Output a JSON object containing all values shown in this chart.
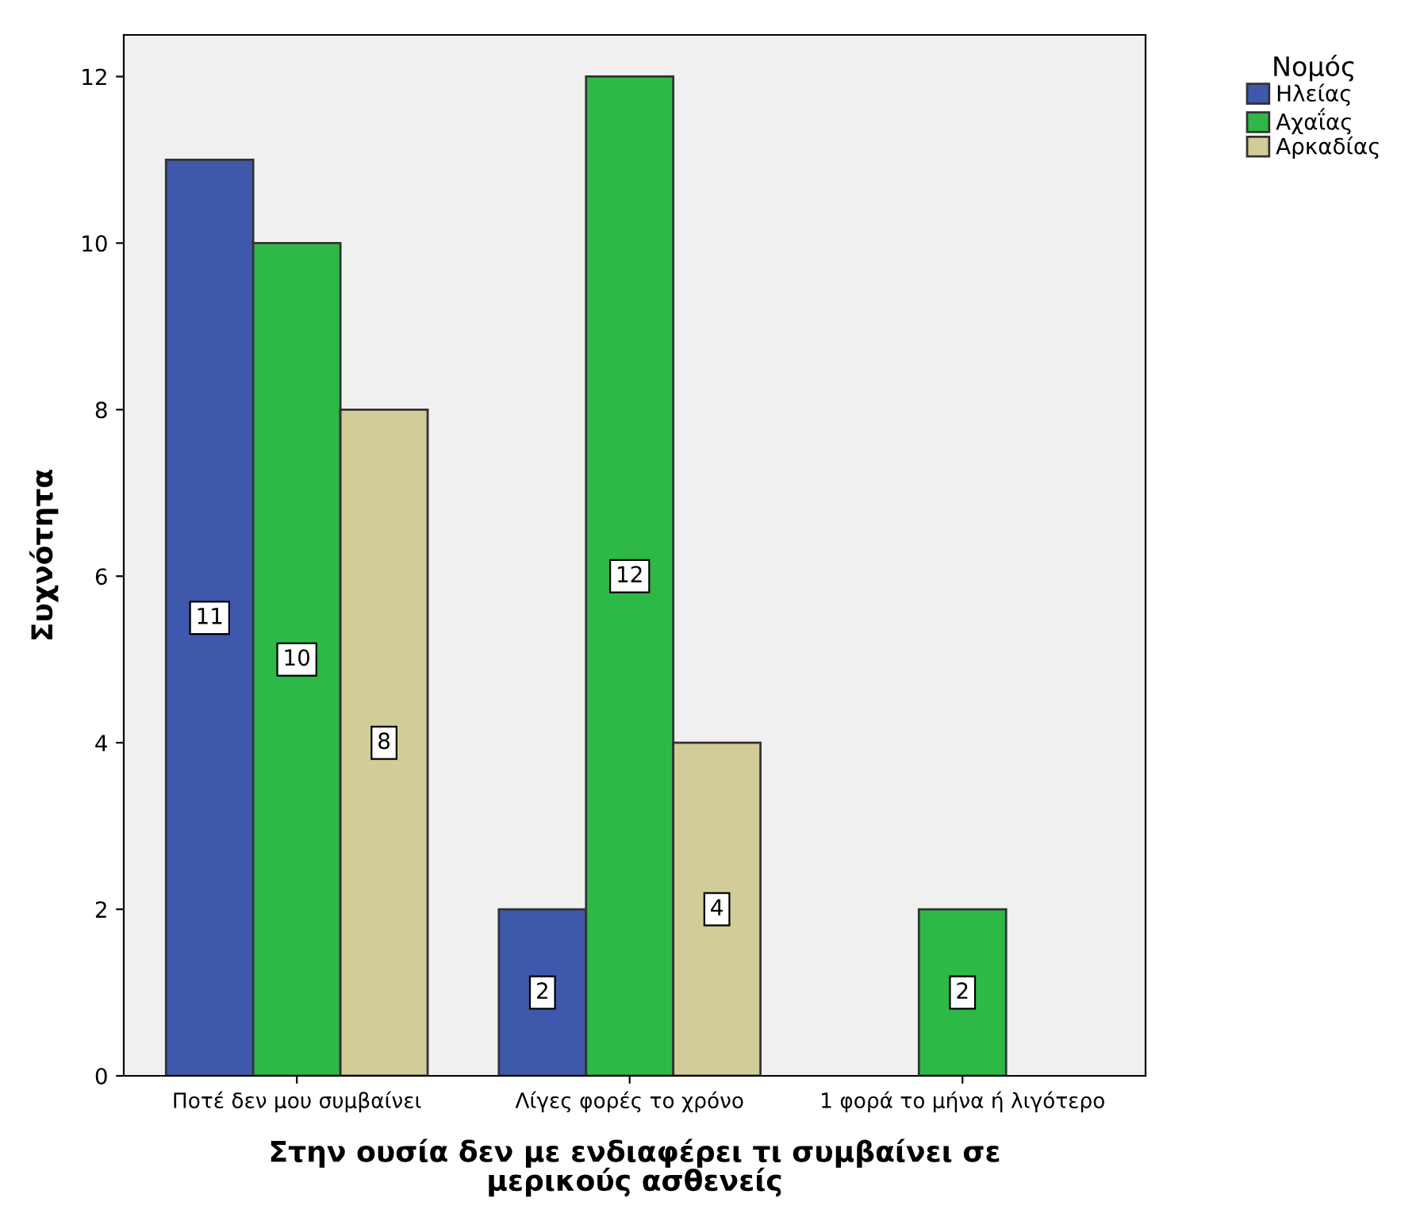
{
  "chart_data": {
    "type": "bar",
    "categories": [
      "Ποτέ δεν μου συμβαίνει",
      "Λίγες φορές το χρόνο",
      "1 φορά το μήνα ή λιγότερο"
    ],
    "series": [
      {
        "name": "Ηλείας",
        "color": "#3e58ac",
        "values": [
          11,
          2,
          null
        ]
      },
      {
        "name": "Αχαΐας",
        "color": "#2eb848",
        "values": [
          10,
          12,
          2
        ]
      },
      {
        "name": "Αρκαδίας",
        "color": "#d2cc98",
        "values": [
          8,
          4,
          null
        ]
      }
    ],
    "xlabel": "Στην ουσία δεν με ενδιαφέρει τι συμβαίνει σε\nμερικούς ασθενείς",
    "ylabel": "Συχνότητα",
    "legend_title": "Νομός",
    "legend": "top right",
    "ylim": [
      0,
      12.5
    ],
    "yticks": [
      0,
      2,
      4,
      6,
      8,
      10,
      12
    ],
    "data_labels": true,
    "grid": false
  }
}
